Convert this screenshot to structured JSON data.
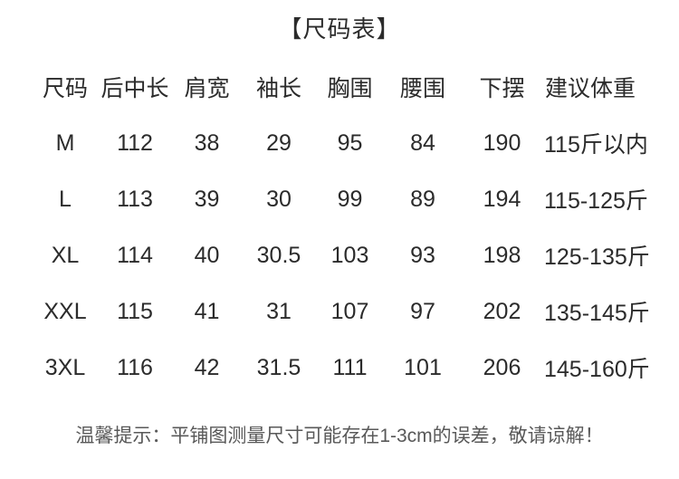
{
  "title": "【尺码表】",
  "footer_note": "温馨提示：平铺图测量尺寸可能存在1-3cm的误差，敬请谅解！",
  "colors": {
    "background": "#ffffff",
    "text": "#2b2b2b",
    "note_text": "#595959"
  },
  "chart_data": {
    "type": "table",
    "title": "【尺码表】",
    "columns": [
      "尺码",
      "后中长",
      "肩宽",
      "袖长",
      "胸围",
      "腰围",
      "下摆",
      "建议体重"
    ],
    "rows": [
      [
        "M",
        "112",
        "38",
        "29",
        "95",
        "84",
        "190",
        "115斤以内"
      ],
      [
        "L",
        "113",
        "39",
        "30",
        "99",
        "89",
        "194",
        "115-125斤"
      ],
      [
        "XL",
        "114",
        "40",
        "30.5",
        "103",
        "93",
        "198",
        "125-135斤"
      ],
      [
        "XXL",
        "115",
        "41",
        "31",
        "107",
        "97",
        "202",
        "135-145斤"
      ],
      [
        "3XL",
        "116",
        "42",
        "31.5",
        "111",
        "101",
        "206",
        "145-160斤"
      ]
    ],
    "note": "温馨提示：平铺图测量尺寸可能存在1-3cm的误差，敬请谅解！",
    "layout": {
      "grid": false,
      "borders": "none",
      "header_position": "top",
      "alignment": "center"
    }
  }
}
